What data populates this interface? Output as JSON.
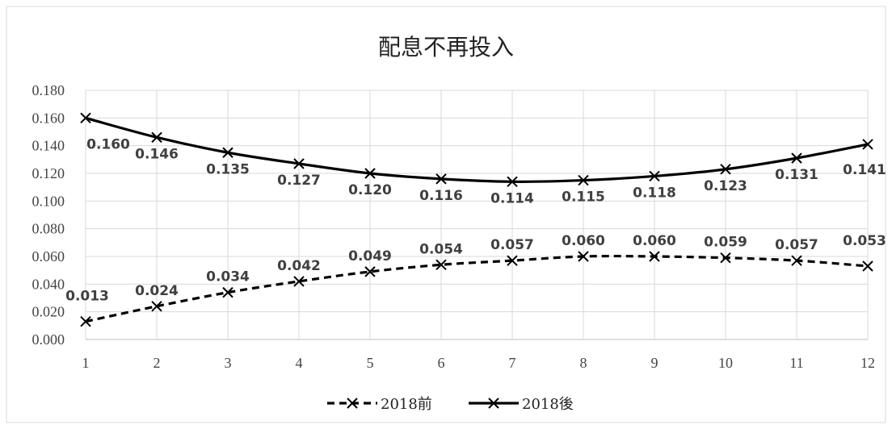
{
  "chart_data": {
    "type": "line",
    "title": "配息不再投入",
    "categories": [
      "1",
      "2",
      "3",
      "4",
      "5",
      "6",
      "7",
      "8",
      "9",
      "10",
      "11",
      "12"
    ],
    "y_ticks": [
      "0.000",
      "0.020",
      "0.040",
      "0.060",
      "0.080",
      "0.100",
      "0.120",
      "0.140",
      "0.160",
      "0.180"
    ],
    "ylim": [
      0,
      0.18
    ],
    "grid": true,
    "legend_position": "bottom",
    "series": [
      {
        "name": "2018前",
        "style": "dashed",
        "color": "#000000",
        "values": [
          0.013,
          0.024,
          0.034,
          0.042,
          0.049,
          0.054,
          0.057,
          0.06,
          0.06,
          0.059,
          0.057,
          0.053
        ],
        "labels": [
          "0.013",
          "0.024",
          "0.034",
          "0.042",
          "0.049",
          "0.054",
          "0.057",
          "0.060",
          "0.060",
          "0.059",
          "0.057",
          "0.053"
        ]
      },
      {
        "name": "2018後",
        "style": "solid",
        "color": "#000000",
        "values": [
          0.16,
          0.146,
          0.135,
          0.127,
          0.12,
          0.116,
          0.114,
          0.115,
          0.118,
          0.123,
          0.131,
          0.141
        ],
        "labels": [
          "0.160",
          "0.146",
          "0.135",
          "0.127",
          "0.120",
          "0.116",
          "0.114",
          "0.115",
          "0.118",
          "0.123",
          "0.131",
          "0.141"
        ]
      }
    ]
  }
}
